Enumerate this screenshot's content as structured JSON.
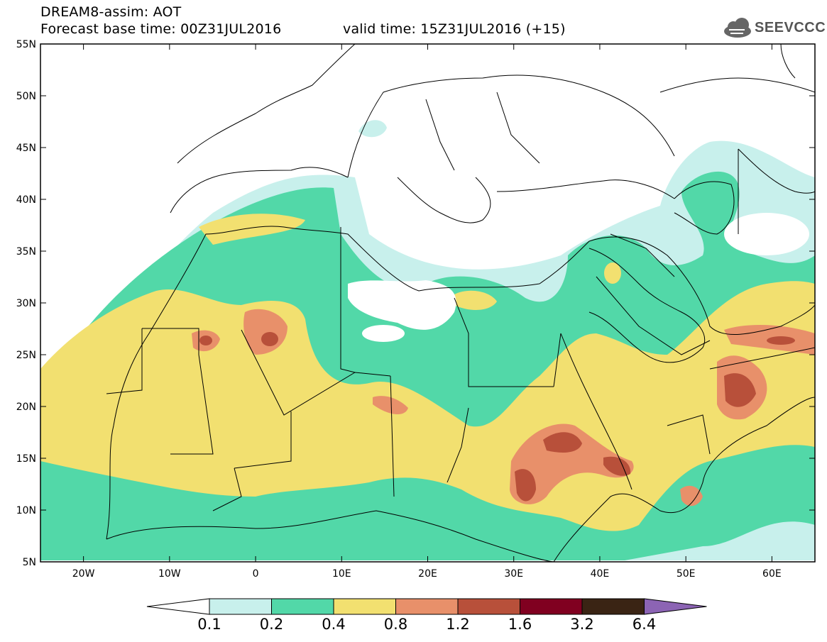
{
  "header": {
    "title": "DREAM8-assim: AOT",
    "base_time": "Forecast base time: 00Z31JUL2016",
    "valid_time": "valid time: 15Z31JUL2016 (+15)"
  },
  "logo": {
    "text": "SEEVCCC",
    "icon": "cloud-icon"
  },
  "map": {
    "lat_labels": [
      "55N",
      "50N",
      "45N",
      "40N",
      "35N",
      "30N",
      "25N",
      "20N",
      "15N",
      "10N",
      "5N"
    ],
    "lon_labels": [
      "20W",
      "10W",
      "0",
      "10E",
      "20E",
      "30E",
      "40E",
      "50E",
      "60E"
    ],
    "lon_range": [
      -25,
      65
    ],
    "lat_range": [
      5,
      55
    ]
  },
  "colorbar": {
    "labels": [
      "0.1",
      "0.2",
      "0.4",
      "0.8",
      "1.2",
      "1.6",
      "3.2",
      "6.4"
    ],
    "colors": [
      "#c8f0ec",
      "#52d8a8",
      "#f2e070",
      "#e8906a",
      "#b8503a",
      "#800020",
      "#3a2414",
      "#8c64b4"
    ]
  }
}
